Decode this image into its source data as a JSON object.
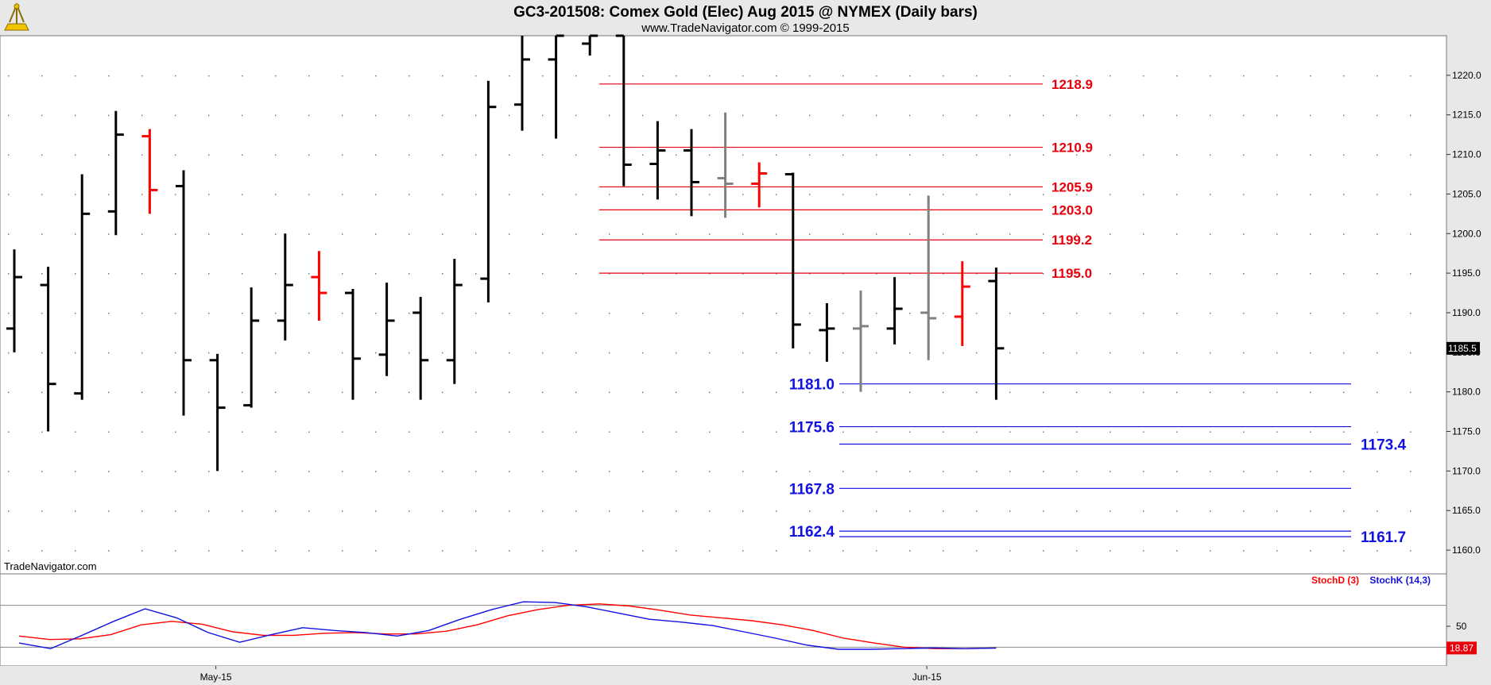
{
  "header": {
    "title": "GC3-201508:  Comex Gold (Elec) Aug 2015 @ NYMEX  (Daily bars)",
    "subtitle": "www.TradeNavigator.com © 1999-2015",
    "logo_icon": "sextant-logo-icon"
  },
  "watermark": "TradeNavigator.com",
  "colors": {
    "up_bar": "#000000",
    "down_bar": "#ff0000",
    "neutral_bar": "#808080",
    "resistance": "#e8000b",
    "support": "#1010e0",
    "stochD": "#ff0000",
    "stochK": "#1010e0"
  },
  "chart_data": [
    {
      "type": "ohlc",
      "title": "GC3-201508:  Comex Gold (Elec) Aug 2015 @ NYMEX  (Daily bars)",
      "ylim": [
        1157,
        1225
      ],
      "yticks": [
        "1160.0",
        "1165.0",
        "1170.0",
        "1175.0",
        "1180.0",
        "1185.0",
        "1190.0",
        "1195.0",
        "1200.0",
        "1205.0",
        "1210.0",
        "1215.0",
        "1220.0"
      ],
      "xlabels": [
        {
          "label": "May-15",
          "bar_index": 6
        },
        {
          "label": "Jun-15",
          "bar_index": 27
        }
      ],
      "last_price": "1185.5",
      "grid": true,
      "bars": [
        {
          "o": 1188.0,
          "h": 1198.0,
          "l": 1185.0,
          "c": 1194.5,
          "color": "up"
        },
        {
          "o": 1193.5,
          "h": 1195.8,
          "l": 1175.0,
          "c": 1181.0,
          "color": "up"
        },
        {
          "o": 1179.8,
          "h": 1207.5,
          "l": 1179.0,
          "c": 1202.5,
          "color": "up"
        },
        {
          "o": 1202.8,
          "h": 1215.5,
          "l": 1199.8,
          "c": 1212.5,
          "color": "up"
        },
        {
          "o": 1212.3,
          "h": 1213.2,
          "l": 1202.5,
          "c": 1205.5,
          "color": "down"
        },
        {
          "o": 1206.0,
          "h": 1208.0,
          "l": 1177.0,
          "c": 1184.0,
          "color": "up"
        },
        {
          "o": 1184.0,
          "h": 1184.8,
          "l": 1170.0,
          "c": 1178.0,
          "color": "up"
        },
        {
          "o": 1178.3,
          "h": 1193.2,
          "l": 1178.0,
          "c": 1189.0,
          "color": "up"
        },
        {
          "o": 1189.0,
          "h": 1200.0,
          "l": 1186.5,
          "c": 1193.5,
          "color": "up"
        },
        {
          "o": 1194.5,
          "h": 1197.8,
          "l": 1189.0,
          "c": 1192.5,
          "color": "down"
        },
        {
          "o": 1192.5,
          "h": 1193.0,
          "l": 1179.0,
          "c": 1184.2,
          "color": "up"
        },
        {
          "o": 1184.7,
          "h": 1193.8,
          "l": 1182.0,
          "c": 1189.0,
          "color": "up"
        },
        {
          "o": 1190.0,
          "h": 1192.0,
          "l": 1179.0,
          "c": 1184.0,
          "color": "up"
        },
        {
          "o": 1184.0,
          "h": 1196.8,
          "l": 1181.0,
          "c": 1193.5,
          "color": "up"
        },
        {
          "o": 1194.3,
          "h": 1219.3,
          "l": 1191.3,
          "c": 1216.0,
          "color": "up"
        },
        {
          "o": 1216.3,
          "h": 1226.0,
          "l": 1213.0,
          "c": 1222.0,
          "color": "up"
        },
        {
          "o": 1222.0,
          "h": 1226.0,
          "l": 1212.0,
          "c": 1225.0,
          "color": "up"
        },
        {
          "o": 1224.0,
          "h": 1226.0,
          "l": 1222.5,
          "c": 1225.0,
          "color": "up"
        },
        {
          "o": 1225.0,
          "h": 1225.5,
          "l": 1206.0,
          "c": 1208.7,
          "color": "up"
        },
        {
          "o": 1208.8,
          "h": 1214.2,
          "l": 1204.3,
          "c": 1210.5,
          "color": "up"
        },
        {
          "o": 1210.5,
          "h": 1213.2,
          "l": 1202.2,
          "c": 1206.5,
          "color": "up"
        },
        {
          "o": 1207.0,
          "h": 1215.3,
          "l": 1202.0,
          "c": 1206.3,
          "color": "neutral"
        },
        {
          "o": 1206.3,
          "h": 1209.0,
          "l": 1203.3,
          "c": 1207.6,
          "color": "down"
        },
        {
          "o": 1207.5,
          "h": 1207.7,
          "l": 1185.5,
          "c": 1188.5,
          "color": "up"
        },
        {
          "o": 1187.8,
          "h": 1191.2,
          "l": 1183.8,
          "c": 1188.0,
          "color": "up"
        },
        {
          "o": 1188.0,
          "h": 1192.8,
          "l": 1180.0,
          "c": 1188.3,
          "color": "neutral"
        },
        {
          "o": 1188.0,
          "h": 1194.5,
          "l": 1186.0,
          "c": 1190.5,
          "color": "up"
        },
        {
          "o": 1190.0,
          "h": 1204.8,
          "l": 1184.0,
          "c": 1189.3,
          "color": "neutral"
        },
        {
          "o": 1189.5,
          "h": 1196.5,
          "l": 1185.8,
          "c": 1193.3,
          "color": "down"
        },
        {
          "o": 1194.0,
          "h": 1195.7,
          "l": 1179.0,
          "c": 1185.5,
          "color": "up"
        }
      ],
      "resistance_levels": [
        "1218.9",
        "1210.9",
        "1205.9",
        "1203.0",
        "1199.2",
        "1195.0"
      ],
      "support_levels": [
        {
          "value": "1181.0",
          "label_side": "left"
        },
        {
          "value": "1175.6",
          "label_side": "left"
        },
        {
          "value": "1173.4",
          "label_side": "right"
        },
        {
          "value": "1167.8",
          "label_side": "left"
        },
        {
          "value": "1162.4",
          "label_side": "left"
        },
        {
          "value": "1161.7",
          "label_side": "right"
        }
      ]
    },
    {
      "type": "line",
      "ylim": [
        0,
        100
      ],
      "yticks": [
        "50"
      ],
      "last_value": "18.87",
      "series": [
        {
          "name": "StochD (3)",
          "color": "#ff0000",
          "values": [
            36,
            31,
            32,
            38,
            52,
            57,
            53,
            42,
            37,
            37,
            40,
            41,
            39,
            39,
            43,
            52,
            65,
            74,
            80,
            82,
            79,
            73,
            66,
            62,
            58,
            52,
            44,
            33,
            26,
            20,
            18,
            18,
            18.87
          ]
        },
        {
          "name": "StochK (14,3)",
          "color": "#1010e0",
          "values": [
            26,
            18,
            37,
            57,
            75,
            62,
            41,
            27,
            38,
            48,
            44,
            41,
            36,
            44,
            60,
            74,
            85,
            84,
            78,
            69,
            60,
            56,
            51,
            42,
            33,
            23,
            17,
            17,
            18,
            19,
            18,
            18.87
          ]
        }
      ]
    }
  ]
}
